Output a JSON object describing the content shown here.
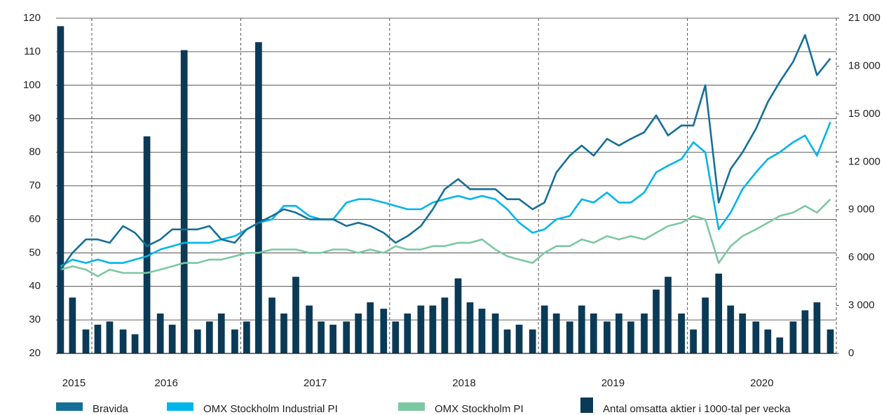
{
  "chart_data": {
    "type": "line",
    "x": [
      2015.79,
      2015.87,
      2015.96,
      2016.04,
      2016.12,
      2016.21,
      2016.29,
      2016.37,
      2016.46,
      2016.54,
      2016.62,
      2016.71,
      2016.79,
      2016.87,
      2016.96,
      2017.04,
      2017.12,
      2017.21,
      2017.29,
      2017.37,
      2017.46,
      2017.54,
      2017.62,
      2017.71,
      2017.79,
      2017.87,
      2017.96,
      2018.04,
      2018.12,
      2018.21,
      2018.29,
      2018.37,
      2018.46,
      2018.54,
      2018.62,
      2018.71,
      2018.79,
      2018.87,
      2018.96,
      2019.04,
      2019.12,
      2019.21,
      2019.29,
      2019.37,
      2019.46,
      2019.54,
      2019.62,
      2019.71,
      2019.79,
      2019.87,
      2019.96,
      2020.04,
      2020.12,
      2020.21,
      2020.29,
      2020.37,
      2020.46,
      2020.54,
      2020.62,
      2020.71,
      2020.79,
      2020.87,
      2020.96
    ],
    "xlim": [
      2015.76,
      2021.0
    ],
    "xticks": [
      {
        "value": 2015.88,
        "label": "2015"
      },
      {
        "value": 2016.5,
        "label": "2016"
      },
      {
        "value": 2017.5,
        "label": "2017"
      },
      {
        "value": 2018.5,
        "label": "2018"
      },
      {
        "value": 2019.5,
        "label": "2019"
      },
      {
        "value": 2020.5,
        "label": "2020"
      }
    ],
    "x_dividers": [
      2016,
      2017,
      2018,
      2019,
      2020,
      2021
    ],
    "ylim": [
      20,
      120
    ],
    "yticks": [
      20,
      30,
      40,
      50,
      60,
      70,
      80,
      90,
      100,
      110,
      120
    ],
    "y2lim": [
      0,
      21000
    ],
    "y2ticks": [
      0,
      {
        "value": 3000,
        "label": "3 000"
      },
      {
        "value": 6000,
        "label": "6 000"
      },
      {
        "value": 9000,
        "label": "9 000"
      },
      {
        "value": 12000,
        "label": "12 000"
      },
      {
        "value": 15000,
        "label": "15 000"
      },
      {
        "value": 18000,
        "label": "18 000"
      },
      {
        "value": 21000,
        "label": "21 000"
      }
    ],
    "grid": true,
    "series": [
      {
        "name": "Bravida",
        "color": "#156f98",
        "values": [
          45,
          50,
          54,
          54,
          53,
          58,
          56,
          52,
          54,
          57,
          57,
          57,
          58,
          54,
          53,
          57,
          59,
          61,
          63,
          62,
          60,
          60,
          60,
          58,
          59,
          58,
          56,
          53,
          55,
          58,
          63,
          69,
          72,
          69,
          69,
          69,
          66,
          66,
          63,
          65,
          74,
          79,
          82,
          79,
          84,
          82,
          84,
          86,
          91,
          85,
          88,
          88,
          100,
          65,
          75,
          80,
          87,
          95,
          101,
          107,
          115,
          103,
          108
        ]
      },
      {
        "name": "OMX Stockholm Industrial PI",
        "color": "#00b5ea",
        "values": [
          46,
          48,
          47,
          48,
          47,
          47,
          48,
          49,
          51,
          52,
          53,
          53,
          53,
          54,
          55,
          57,
          59,
          60,
          64,
          64,
          61,
          60,
          60,
          65,
          66,
          66,
          65,
          64,
          63,
          63,
          65,
          66,
          67,
          66,
          67,
          66,
          63,
          59,
          56,
          57,
          60,
          61,
          66,
          65,
          68,
          65,
          65,
          68,
          74,
          76,
          78,
          83,
          80,
          57,
          62,
          69,
          74,
          78,
          80,
          83,
          85,
          79,
          89
        ]
      },
      {
        "name": "OMX Stockholm PI",
        "color": "#7cc8a2",
        "values": [
          45,
          46,
          45,
          43,
          45,
          44,
          44,
          44,
          45,
          46,
          47,
          47,
          48,
          48,
          49,
          50,
          50,
          51,
          51,
          51,
          50,
          50,
          51,
          51,
          50,
          51,
          50,
          52,
          51,
          51,
          52,
          52,
          53,
          53,
          54,
          51,
          49,
          48,
          47,
          50,
          52,
          52,
          54,
          53,
          55,
          54,
          55,
          54,
          56,
          58,
          59,
          61,
          60,
          47,
          52,
          55,
          57,
          59,
          61,
          62,
          64,
          62,
          66
        ]
      },
      {
        "name": "Antal omsatta aktier i 1000-tal per vecka",
        "color": "#0b3a56",
        "type": "bar",
        "axis": "y2",
        "values": [
          20500,
          3500,
          1500,
          1800,
          2000,
          1500,
          1200,
          13600,
          2500,
          1800,
          19000,
          1500,
          2000,
          2500,
          1500,
          2000,
          19500,
          3500,
          2500,
          4800,
          3000,
          2000,
          1800,
          2000,
          2500,
          3200,
          2800,
          2000,
          2500,
          3000,
          3000,
          3500,
          4700,
          3200,
          2800,
          2500,
          1500,
          1800,
          1500,
          3000,
          2500,
          2000,
          3000,
          2500,
          2000,
          2500,
          2000,
          2500,
          4000,
          4800,
          2500,
          1500,
          3500,
          5000,
          3000,
          2500,
          2000,
          1500,
          1000,
          2000,
          2700,
          3200,
          1500
        ]
      }
    ]
  }
}
